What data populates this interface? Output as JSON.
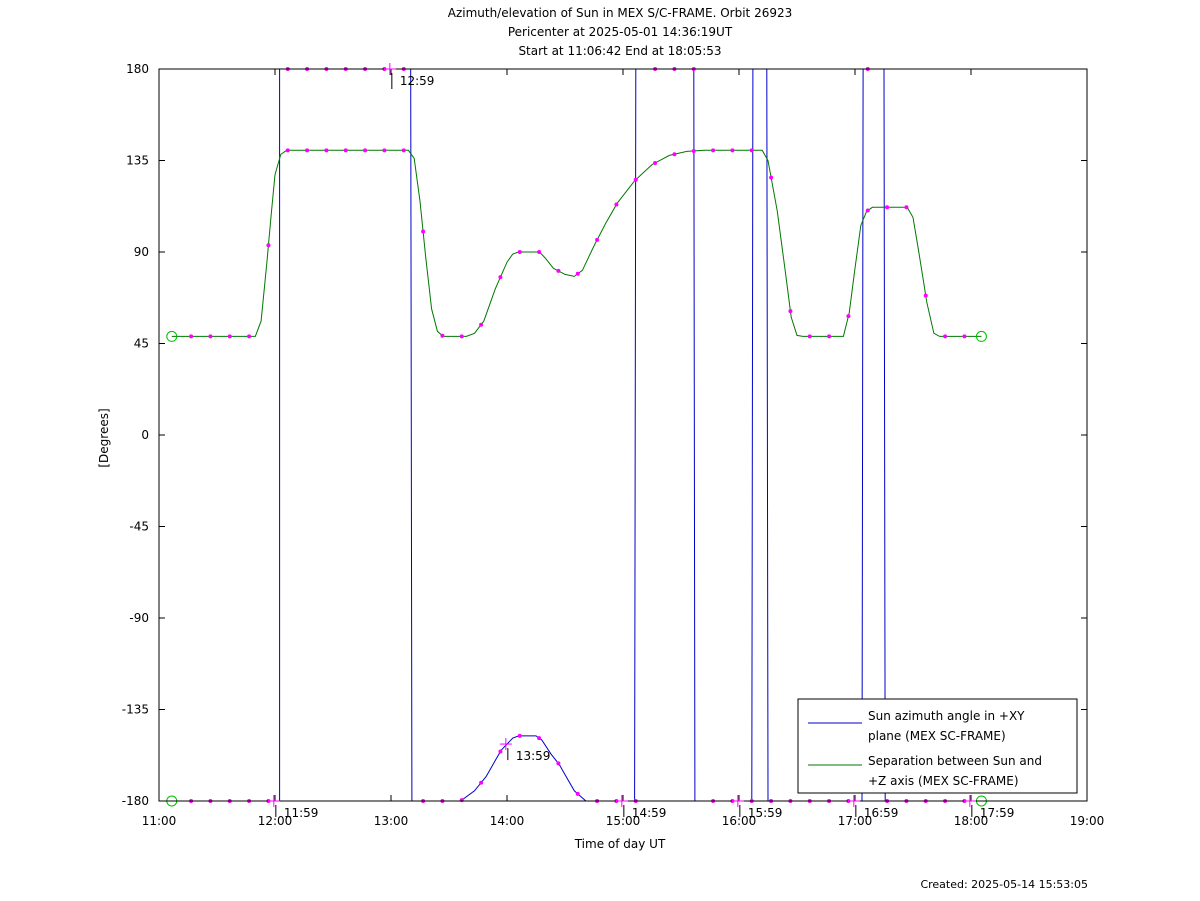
{
  "chart_data": {
    "type": "line",
    "title": "Azimuth/elevation of Sun in MEX S/C-FRAME.  Orbit 26923",
    "subtitle": "Pericenter at 2025-05-01 14:36:19UT",
    "subtitle2": "Start at 11:06:42 End at 18:05:53",
    "xlabel": "Time of day UT",
    "ylabel": "[Degrees]",
    "xlim": [
      11.0,
      19.0
    ],
    "ylim": [
      -180,
      180
    ],
    "x_ticks": [
      11,
      12,
      13,
      14,
      15,
      16,
      17,
      18,
      19
    ],
    "x_tick_labels": [
      "11:00",
      "12:00",
      "13:00",
      "14:00",
      "15:00",
      "16:00",
      "17:00",
      "18:00",
      "19:00"
    ],
    "y_ticks": [
      180,
      135,
      90,
      45,
      0,
      -45,
      -90,
      -135,
      -180
    ],
    "y_tick_labels": [
      "180",
      "135",
      "90",
      "45",
      "0",
      "-45",
      "-90",
      "-135",
      "-180"
    ],
    "grid": false,
    "legend_position": "bottom-right",
    "series": [
      {
        "name": "Sun azimuth angle in +XY plane (MEX SC-FRAME)",
        "legend_lines": [
          "Sun azimuth angle in +XY",
          "plane (MEX SC-FRAME)"
        ],
        "color": "#0000c8",
        "points": [
          [
            11.11,
            -180
          ],
          [
            11.85,
            -180
          ],
          [
            12.04,
            -180
          ],
          [
            12.04,
            180
          ],
          [
            13.17,
            180
          ],
          [
            13.18,
            -180
          ],
          [
            13.6,
            -180
          ],
          [
            13.72,
            -175
          ],
          [
            13.82,
            -168
          ],
          [
            13.9,
            -160
          ],
          [
            13.95,
            -155
          ],
          [
            14.0,
            -152
          ],
          [
            14.05,
            -149
          ],
          [
            14.1,
            -148
          ],
          [
            14.25,
            -148
          ],
          [
            14.3,
            -150
          ],
          [
            14.38,
            -157
          ],
          [
            14.45,
            -162
          ],
          [
            14.5,
            -167
          ],
          [
            14.58,
            -175
          ],
          [
            14.68,
            -180
          ],
          [
            15.1,
            -180
          ],
          [
            15.11,
            180
          ],
          [
            15.61,
            180
          ],
          [
            15.62,
            -180
          ],
          [
            16.11,
            -180
          ],
          [
            16.12,
            180
          ],
          [
            16.24,
            180
          ],
          [
            16.25,
            -180
          ],
          [
            17.06,
            -180
          ],
          [
            17.07,
            180
          ],
          [
            17.25,
            180
          ],
          [
            17.26,
            -180
          ],
          [
            18.09,
            -180
          ]
        ]
      },
      {
        "name": "Separation between Sun and +Z axis (MEX SC-FRAME)",
        "legend_lines": [
          "Separation between Sun and",
          "+Z axis (MEX SC-FRAME)"
        ],
        "color": "#007800",
        "points": [
          [
            11.11,
            48.5
          ],
          [
            11.83,
            48.5
          ],
          [
            11.88,
            56
          ],
          [
            11.93,
            85
          ],
          [
            11.97,
            110
          ],
          [
            12.0,
            128
          ],
          [
            12.05,
            138
          ],
          [
            12.1,
            140
          ],
          [
            13.15,
            140
          ],
          [
            13.2,
            136
          ],
          [
            13.25,
            115
          ],
          [
            13.3,
            87
          ],
          [
            13.35,
            62
          ],
          [
            13.4,
            51
          ],
          [
            13.45,
            48.5
          ],
          [
            13.65,
            48.5
          ],
          [
            13.72,
            50
          ],
          [
            13.8,
            56
          ],
          [
            13.9,
            72
          ],
          [
            14.0,
            85
          ],
          [
            14.05,
            89
          ],
          [
            14.1,
            90
          ],
          [
            14.28,
            90
          ],
          [
            14.33,
            87
          ],
          [
            14.4,
            82
          ],
          [
            14.5,
            79
          ],
          [
            14.58,
            78
          ],
          [
            14.65,
            81
          ],
          [
            14.75,
            93
          ],
          [
            14.85,
            104
          ],
          [
            14.95,
            114
          ],
          [
            15.1,
            125
          ],
          [
            15.25,
            133
          ],
          [
            15.4,
            137.5
          ],
          [
            15.55,
            139.5
          ],
          [
            15.7,
            140
          ],
          [
            16.2,
            140
          ],
          [
            16.25,
            135
          ],
          [
            16.33,
            110
          ],
          [
            16.4,
            80
          ],
          [
            16.45,
            58
          ],
          [
            16.5,
            49
          ],
          [
            16.55,
            48.5
          ],
          [
            16.9,
            48.5
          ],
          [
            16.95,
            60
          ],
          [
            17.0,
            82
          ],
          [
            17.05,
            103
          ],
          [
            17.1,
            110
          ],
          [
            17.15,
            112
          ],
          [
            17.45,
            112
          ],
          [
            17.5,
            107
          ],
          [
            17.55,
            90
          ],
          [
            17.62,
            65
          ],
          [
            17.68,
            50
          ],
          [
            17.73,
            48.5
          ],
          [
            18.09,
            48.5
          ]
        ]
      }
    ],
    "time_markers": [
      {
        "label": "11:59",
        "x": 11.99,
        "y": -180
      },
      {
        "label": "12:59",
        "x": 12.99,
        "y": 180
      },
      {
        "label": "13:59",
        "x": 13.99,
        "y": -152
      },
      {
        "label": "14:59",
        "x": 14.99,
        "y": -180
      },
      {
        "label": "15:59",
        "x": 15.99,
        "y": -180
      },
      {
        "label": "16:59",
        "x": 16.99,
        "y": -180
      },
      {
        "label": "17:59",
        "x": 17.99,
        "y": -180
      }
    ],
    "footer": "Created: 2025-05-14 15:53:05"
  }
}
